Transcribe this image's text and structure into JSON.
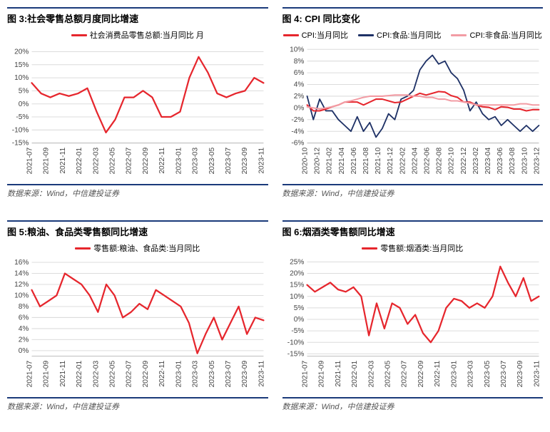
{
  "charts": [
    {
      "title": "图 3:社会零售总额月度同比增速",
      "source": "数据来源：Wind，中信建投证券",
      "legend": [
        {
          "label": "社会消费品零售总额:当月同比 月",
          "color": "#e6262d"
        }
      ],
      "xlabels": [
        "2021-07",
        "2021-09",
        "2021-11",
        "2022-01",
        "2022-03",
        "2022-05",
        "2022-07",
        "2022-09",
        "2022-11",
        "2023-01",
        "2023-03",
        "2023-05",
        "2023-07",
        "2023-09",
        "2023-11"
      ],
      "yticks": [
        -15,
        -10,
        -5,
        0,
        5,
        10,
        15,
        20
      ],
      "ylim": [
        -15,
        22
      ],
      "series": [
        {
          "color": "#e6262d",
          "width": 2.2,
          "values": [
            8,
            4,
            2.5,
            4,
            3,
            4,
            6,
            -3,
            -11,
            -6,
            2.5,
            2.5,
            5,
            2.5,
            -5,
            -5,
            -3,
            10,
            18,
            12,
            4,
            2.5,
            4,
            5,
            10,
            8
          ]
        }
      ],
      "grid_color": "#dcdcdc",
      "label_rotate": true
    },
    {
      "title": "图 4: CPI 同比变化",
      "source": "数据来源：Wind，中信建投证券",
      "legend": [
        {
          "label": "CPI:当月同比",
          "color": "#e6262d"
        },
        {
          "label": "CPI:食品:当月同比",
          "color": "#1e3166"
        },
        {
          "label": "CPI:非食品:当月同比",
          "color": "#f29ca4"
        }
      ],
      "xlabels": [
        "2020-10",
        "2020-12",
        "2021-02",
        "2021-04",
        "2021-06",
        "2021-08",
        "2021-10",
        "2021-12",
        "2022-02",
        "2022-04",
        "2022-06",
        "2022-08",
        "2022-10",
        "2022-12",
        "2023-02",
        "2023-04",
        "2023-06",
        "2023-08",
        "2023-10",
        "2023-12"
      ],
      "yticks": [
        -6,
        -4,
        -2,
        0,
        2,
        4,
        6,
        8,
        10
      ],
      "ylim": [
        -6,
        10.5
      ],
      "series": [
        {
          "color": "#1e3166",
          "width": 1.8,
          "values": [
            2,
            -2,
            1.5,
            -0.5,
            -0.5,
            -2,
            -3,
            -4,
            -1.5,
            -4,
            -2.5,
            -5,
            -3.5,
            -1,
            -2,
            1.5,
            2,
            3,
            6.5,
            8,
            9,
            7.5,
            8,
            6,
            5,
            3,
            -0.5,
            1,
            -1,
            -2,
            -1.5,
            -3,
            -2,
            -3,
            -4,
            -3,
            -4,
            -3
          ]
        },
        {
          "color": "#e6262d",
          "width": 2,
          "values": [
            0.5,
            -0.5,
            -0.5,
            -0.2,
            0.2,
            0.5,
            1,
            1,
            1,
            0.5,
            1,
            1.5,
            1.5,
            1.2,
            0.9,
            1,
            1.5,
            2,
            2.5,
            2.2,
            2.5,
            2.8,
            2.7,
            2.1,
            1.8,
            1,
            1,
            0.5,
            0.2,
            0.1,
            -0.3,
            0.2,
            0.1,
            -0.2,
            -0.2,
            -0.5,
            -0.3,
            -0.3
          ]
        },
        {
          "color": "#f29ca4",
          "width": 2,
          "values": [
            0.2,
            0,
            -0.2,
            0,
            0.2,
            0.5,
            1,
            1.2,
            1.5,
            1.8,
            2,
            2,
            2,
            2.1,
            2.2,
            2.2,
            2.2,
            2,
            2,
            1.8,
            1.8,
            1.5,
            1.5,
            1.2,
            1.2,
            1,
            0.8,
            0.5,
            0.5,
            0.5,
            0.5,
            0.5,
            0.5,
            0.5,
            0.7,
            0.7,
            0.5,
            0.5
          ]
        }
      ],
      "grid_color": "#dcdcdc",
      "label_rotate": true
    },
    {
      "title": "图 5:粮油、食品类零售额同比增速",
      "source": "数据来源：Wind，中信建投证券",
      "legend": [
        {
          "label": "零售额:粮油、食品类:当月同比",
          "color": "#e6262d"
        }
      ],
      "xlabels": [
        "2021-07",
        "2021-09",
        "2021-11",
        "2022-01",
        "2022-03",
        "2022-05",
        "2022-07",
        "2022-09",
        "2022-11",
        "2023-01",
        "2023-03",
        "2023-05",
        "2023-07",
        "2023-09",
        "2023-11"
      ],
      "yticks": [
        0,
        2,
        4,
        6,
        8,
        10,
        12,
        14,
        16
      ],
      "ylim": [
        -1,
        16.5
      ],
      "series": [
        {
          "color": "#e6262d",
          "width": 2.2,
          "values": [
            11,
            8,
            9,
            10,
            14,
            13,
            12,
            10,
            7,
            12,
            10,
            6,
            7,
            8.5,
            7.5,
            11,
            10,
            9,
            8,
            5,
            -0.5,
            3,
            6,
            2,
            5,
            8,
            3,
            6,
            5.5
          ]
        }
      ],
      "grid_color": "#dcdcdc",
      "label_rotate": true
    },
    {
      "title": "图 6:烟酒类零售额同比增速",
      "source": "数据来源：Wind，中信建投证券",
      "legend": [
        {
          "label": "零售额:烟酒类:当月同比",
          "color": "#e6262d"
        }
      ],
      "xlabels": [
        "2021-07",
        "2021-09",
        "2021-11",
        "2022-01",
        "2022-03",
        "2022-05",
        "2022-07",
        "2022-09",
        "2022-11",
        "2023-01",
        "2023-03",
        "2023-05",
        "2023-07",
        "2023-09",
        "2023-11"
      ],
      "yticks": [
        -15,
        -10,
        -5,
        0,
        5,
        10,
        15,
        20,
        25
      ],
      "ylim": [
        -16,
        26
      ],
      "series": [
        {
          "color": "#e6262d",
          "width": 2.2,
          "values": [
            15,
            12,
            14,
            16,
            13,
            12,
            14,
            10,
            -7,
            7,
            -4,
            7,
            5,
            -2,
            2,
            -6,
            -10,
            -5,
            5,
            9,
            8,
            5,
            7,
            5,
            10,
            23,
            16,
            10,
            18,
            8,
            10
          ]
        }
      ],
      "grid_color": "#dcdcdc",
      "label_rotate": true
    }
  ]
}
